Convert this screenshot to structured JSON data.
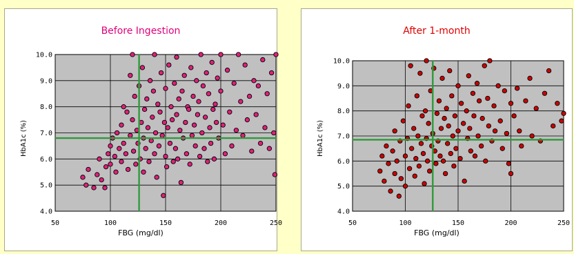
{
  "colors": {
    "background": "#ffffc8",
    "plot_area": "#c0c0c0",
    "threshold_lines": "#2e9a3a",
    "before_title": "#e0007a",
    "before_points": "#e0207a",
    "after_title": "#e00000",
    "after_points": "#cc0000"
  },
  "chart_data": [
    {
      "type": "scatter",
      "title": "Before Ingestion",
      "xlabel": "FBG (mg/dl)",
      "ylabel": "HbA1c (%)",
      "xlim": [
        50,
        250
      ],
      "ylim": [
        4.0,
        10.0
      ],
      "xticks": [
        "50",
        "100",
        "150",
        "200",
        "250"
      ],
      "yticks": [
        "4.0",
        "5.0",
        "6.0",
        "7.0",
        "8.0",
        "9.0",
        "10.0"
      ],
      "threshold_x": 126,
      "threshold_y": 6.8,
      "grid": true,
      "marker_color": "#e0207a",
      "points": [
        [
          75,
          5.3
        ],
        [
          78,
          5.0
        ],
        [
          80,
          5.6
        ],
        [
          85,
          4.9
        ],
        [
          88,
          5.4
        ],
        [
          90,
          6.0
        ],
        [
          92,
          5.2
        ],
        [
          95,
          4.9
        ],
        [
          96,
          5.7
        ],
        [
          98,
          6.2
        ],
        [
          100,
          6.5
        ],
        [
          100,
          5.8
        ],
        [
          102,
          6.8
        ],
        [
          104,
          6.1
        ],
        [
          105,
          5.5
        ],
        [
          106,
          7.0
        ],
        [
          108,
          6.4
        ],
        [
          110,
          5.9
        ],
        [
          110,
          7.3
        ],
        [
          112,
          6.6
        ],
        [
          112,
          8.0
        ],
        [
          114,
          6.2
        ],
        [
          115,
          7.8
        ],
        [
          116,
          5.6
        ],
        [
          118,
          9.2
        ],
        [
          118,
          6.9
        ],
        [
          120,
          10.0
        ],
        [
          120,
          7.5
        ],
        [
          121,
          6.3
        ],
        [
          122,
          8.4
        ],
        [
          123,
          5.8
        ],
        [
          124,
          7.1
        ],
        [
          125,
          6.6
        ],
        [
          126,
          8.8
        ],
        [
          127,
          6.0
        ],
        [
          128,
          7.4
        ],
        [
          129,
          9.5
        ],
        [
          130,
          6.8
        ],
        [
          130,
          5.5
        ],
        [
          131,
          7.9
        ],
        [
          132,
          6.4
        ],
        [
          133,
          8.3
        ],
        [
          134,
          7.2
        ],
        [
          135,
          5.9
        ],
        [
          136,
          9.0
        ],
        [
          137,
          6.7
        ],
        [
          138,
          7.6
        ],
        [
          139,
          8.6
        ],
        [
          140,
          6.2
        ],
        [
          140,
          10.0
        ],
        [
          141,
          7.0
        ],
        [
          142,
          5.3
        ],
        [
          143,
          8.1
        ],
        [
          144,
          6.5
        ],
        [
          145,
          7.8
        ],
        [
          146,
          9.3
        ],
        [
          147,
          6.9
        ],
        [
          148,
          4.6
        ],
        [
          149,
          7.4
        ],
        [
          150,
          8.7
        ],
        [
          150,
          6.1
        ],
        [
          151,
          5.7
        ],
        [
          152,
          7.2
        ],
        [
          153,
          9.6
        ],
        [
          154,
          6.6
        ],
        [
          155,
          8.0
        ],
        [
          156,
          7.5
        ],
        [
          157,
          5.9
        ],
        [
          158,
          8.9
        ],
        [
          159,
          6.4
        ],
        [
          160,
          7.7
        ],
        [
          160,
          9.9
        ],
        [
          161,
          6.0
        ],
        [
          162,
          8.3
        ],
        [
          163,
          7.1
        ],
        [
          164,
          5.1
        ],
        [
          165,
          8.6
        ],
        [
          166,
          6.8
        ],
        [
          167,
          9.2
        ],
        [
          168,
          7.4
        ],
        [
          169,
          6.2
        ],
        [
          170,
          8.0
        ],
        [
          171,
          7.9
        ],
        [
          172,
          5.8
        ],
        [
          173,
          9.5
        ],
        [
          174,
          6.9
        ],
        [
          175,
          8.4
        ],
        [
          176,
          7.3
        ],
        [
          177,
          6.5
        ],
        [
          178,
          9.0
        ],
        [
          179,
          7.7
        ],
        [
          180,
          8.2
        ],
        [
          181,
          6.1
        ],
        [
          182,
          10.0
        ],
        [
          183,
          7.0
        ],
        [
          184,
          8.8
        ],
        [
          185,
          6.4
        ],
        [
          186,
          7.6
        ],
        [
          187,
          9.3
        ],
        [
          188,
          5.9
        ],
        [
          189,
          8.5
        ],
        [
          190,
          7.2
        ],
        [
          191,
          6.6
        ],
        [
          192,
          9.7
        ],
        [
          193,
          7.9
        ],
        [
          194,
          6.0
        ],
        [
          195,
          8.1
        ],
        [
          196,
          7.4
        ],
        [
          197,
          9.1
        ],
        [
          198,
          6.8
        ],
        [
          200,
          8.6
        ],
        [
          200,
          10.0
        ],
        [
          202,
          7.3
        ],
        [
          204,
          6.2
        ],
        [
          206,
          9.4
        ],
        [
          208,
          7.8
        ],
        [
          210,
          6.5
        ],
        [
          212,
          8.9
        ],
        [
          214,
          7.1
        ],
        [
          216,
          10.0
        ],
        [
          218,
          8.2
        ],
        [
          220,
          6.9
        ],
        [
          222,
          9.6
        ],
        [
          224,
          7.5
        ],
        [
          226,
          8.4
        ],
        [
          228,
          6.3
        ],
        [
          230,
          9.0
        ],
        [
          232,
          7.7
        ],
        [
          234,
          8.8
        ],
        [
          236,
          6.6
        ],
        [
          238,
          9.8
        ],
        [
          240,
          7.2
        ],
        [
          242,
          8.5
        ],
        [
          244,
          6.4
        ],
        [
          246,
          9.3
        ],
        [
          248,
          7.0
        ],
        [
          249,
          5.4
        ],
        [
          250,
          10.0
        ]
      ]
    },
    {
      "type": "scatter",
      "title": "After 1-month",
      "xlabel": "FBG (mg/dl)",
      "ylabel": "HbA1c (%)",
      "xlim": [
        50,
        250
      ],
      "ylim": [
        4.0,
        10.0
      ],
      "xticks": [
        "50",
        "100",
        "150",
        "200",
        "250"
      ],
      "yticks": [
        "4.0",
        "5.0",
        "6.0",
        "7.0",
        "8.0",
        "9.0",
        "10.0"
      ],
      "threshold_x": 126,
      "threshold_y": 6.85,
      "grid": true,
      "marker_color": "#cc0000",
      "points": [
        [
          76,
          5.6
        ],
        [
          78,
          6.2
        ],
        [
          80,
          5.2
        ],
        [
          82,
          6.6
        ],
        [
          84,
          5.9
        ],
        [
          86,
          4.8
        ],
        [
          88,
          6.4
        ],
        [
          90,
          5.5
        ],
        [
          90,
          7.2
        ],
        [
          92,
          6.0
        ],
        [
          94,
          4.6
        ],
        [
          95,
          6.8
        ],
        [
          96,
          5.3
        ],
        [
          98,
          7.6
        ],
        [
          100,
          6.2
        ],
        [
          100,
          5.0
        ],
        [
          102,
          6.9
        ],
        [
          103,
          8.2
        ],
        [
          104,
          5.7
        ],
        [
          105,
          9.8
        ],
        [
          106,
          6.5
        ],
        [
          108,
          7.3
        ],
        [
          109,
          5.4
        ],
        [
          110,
          6.1
        ],
        [
          111,
          8.6
        ],
        [
          112,
          7.0
        ],
        [
          113,
          5.8
        ],
        [
          114,
          9.5
        ],
        [
          115,
          6.7
        ],
        [
          116,
          7.8
        ],
        [
          117,
          6.3
        ],
        [
          118,
          5.1
        ],
        [
          119,
          8.0
        ],
        [
          120,
          6.9
        ],
        [
          120,
          10.0
        ],
        [
          121,
          6.0
        ],
        [
          122,
          7.5
        ],
        [
          123,
          5.6
        ],
        [
          124,
          8.8
        ],
        [
          125,
          6.6
        ],
        [
          126,
          7.1
        ],
        [
          127,
          9.7
        ],
        [
          128,
          6.4
        ],
        [
          129,
          5.9
        ],
        [
          130,
          7.9
        ],
        [
          131,
          6.8
        ],
        [
          132,
          8.4
        ],
        [
          133,
          6.2
        ],
        [
          134,
          7.3
        ],
        [
          135,
          9.3
        ],
        [
          136,
          6.0
        ],
        [
          137,
          7.7
        ],
        [
          138,
          5.5
        ],
        [
          139,
          8.1
        ],
        [
          140,
          6.7
        ],
        [
          141,
          7.4
        ],
        [
          142,
          9.6
        ],
        [
          143,
          6.3
        ],
        [
          144,
          8.6
        ],
        [
          145,
          7.0
        ],
        [
          146,
          5.8
        ],
        [
          147,
          7.8
        ],
        [
          148,
          6.5
        ],
        [
          150,
          9.0
        ],
        [
          150,
          7.2
        ],
        [
          152,
          6.1
        ],
        [
          153,
          8.3
        ],
        [
          155,
          7.5
        ],
        [
          156,
          5.2
        ],
        [
          158,
          8.0
        ],
        [
          159,
          6.9
        ],
        [
          160,
          9.4
        ],
        [
          161,
          7.3
        ],
        [
          162,
          6.4
        ],
        [
          164,
          8.7
        ],
        [
          165,
          7.8
        ],
        [
          166,
          6.2
        ],
        [
          168,
          9.1
        ],
        [
          169,
          7.0
        ],
        [
          170,
          8.4
        ],
        [
          172,
          6.6
        ],
        [
          173,
          7.7
        ],
        [
          175,
          9.8
        ],
        [
          176,
          6.0
        ],
        [
          178,
          8.5
        ],
        [
          179,
          7.4
        ],
        [
          180,
          10.0
        ],
        [
          182,
          6.8
        ],
        [
          184,
          8.2
        ],
        [
          185,
          7.2
        ],
        [
          188,
          9.0
        ],
        [
          190,
          7.6
        ],
        [
          192,
          6.5
        ],
        [
          194,
          8.8
        ],
        [
          196,
          7.1
        ],
        [
          198,
          5.9
        ],
        [
          200,
          8.3
        ],
        [
          200,
          5.5
        ],
        [
          203,
          7.8
        ],
        [
          206,
          8.9
        ],
        [
          208,
          7.2
        ],
        [
          210,
          6.6
        ],
        [
          214,
          8.4
        ],
        [
          218,
          9.3
        ],
        [
          220,
          7.0
        ],
        [
          224,
          8.1
        ],
        [
          228,
          6.8
        ],
        [
          232,
          8.7
        ],
        [
          236,
          9.6
        ],
        [
          240,
          7.4
        ],
        [
          244,
          8.3
        ],
        [
          248,
          7.6
        ],
        [
          250,
          7.9
        ]
      ]
    }
  ]
}
